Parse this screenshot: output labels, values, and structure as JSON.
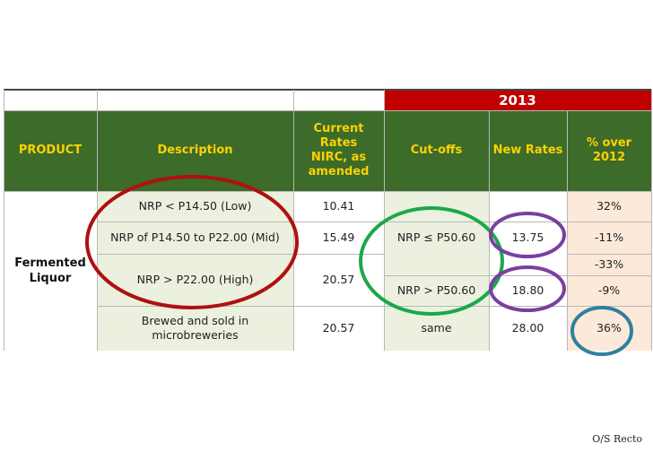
{
  "table": {
    "year": "2013",
    "headers": {
      "product": "PRODUCT",
      "description": "Description",
      "current_rates": "Current\nRates\nNIRC, as\namended",
      "cutoffs": "Cut-offs",
      "new_rates": "New Rates",
      "pct_over": "% over\n2012"
    },
    "product": "Fermented\nLiquor",
    "descriptions": [
      "NRP < P14.50 (Low)",
      "NRP of P14.50 to P22.00 (Mid)",
      "NRP > P22.00 (High)",
      "Brewed and sold in\nmicrobreweries"
    ],
    "current_rates": [
      "10.41",
      "15.49",
      "20.57",
      "20.57"
    ],
    "cutoffs": [
      "NRP ≤ P50.60",
      "NRP > P50.60",
      "same"
    ],
    "new_rates": [
      "13.75",
      "18.80",
      "28.00"
    ],
    "pct_over": [
      "32%",
      "-11%",
      "-33%",
      "-9%",
      "36%"
    ]
  },
  "annotations": {
    "red_circle_color": "#b01010",
    "green_circle_color": "#1aa84a",
    "purple_circle_color": "#7a3fa0",
    "blue_circle_color": "#2f7fa0"
  },
  "footer": "O/S Recto"
}
